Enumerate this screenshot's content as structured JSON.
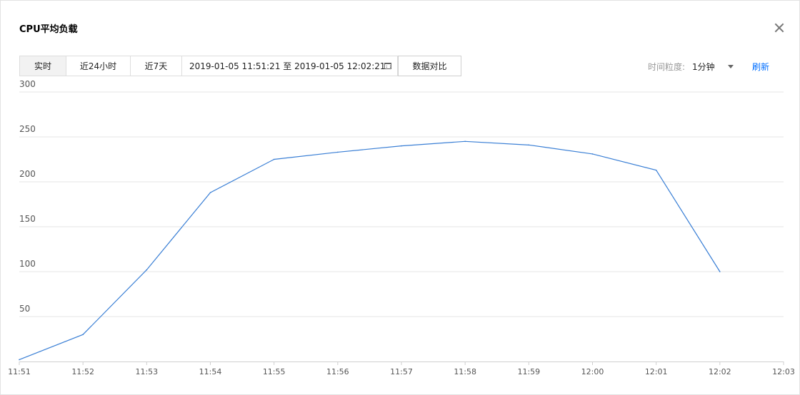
{
  "dialog": {
    "title": "CPU平均负载"
  },
  "toolbar": {
    "tabs": [
      {
        "label": "实时",
        "active": true
      },
      {
        "label": "近24小时",
        "active": false
      },
      {
        "label": "近7天",
        "active": false
      }
    ],
    "date_range": "2019-01-05 11:51:21 至 2019-01-05 12:02:21",
    "compare_label": "数据对比",
    "granularity_label": "时间粒度:",
    "granularity_value": "1分钟",
    "refresh_label": "刷新"
  },
  "colors": {
    "line": "#3a7fd5",
    "grid": "#e6e6e6",
    "accent": "#006eff"
  },
  "chart_data": {
    "type": "line",
    "x": [
      "11:51",
      "11:52",
      "11:53",
      "11:54",
      "11:55",
      "11:56",
      "11:57",
      "11:58",
      "11:59",
      "12:00",
      "12:01",
      "12:02"
    ],
    "x_ticks": [
      "11:51",
      "11:52",
      "11:53",
      "11:54",
      "11:55",
      "11:56",
      "11:57",
      "11:58",
      "11:59",
      "12:00",
      "12:01",
      "12:02",
      "12:03"
    ],
    "series": [
      {
        "values": [
          2,
          30,
          102,
          188,
          225,
          233,
          240,
          245,
          241,
          231,
          213,
          100
        ]
      }
    ],
    "y_ticks": [
      50,
      100,
      150,
      200,
      250,
      300
    ],
    "ylim": [
      0,
      300
    ],
    "grid": true,
    "legend": "none"
  }
}
